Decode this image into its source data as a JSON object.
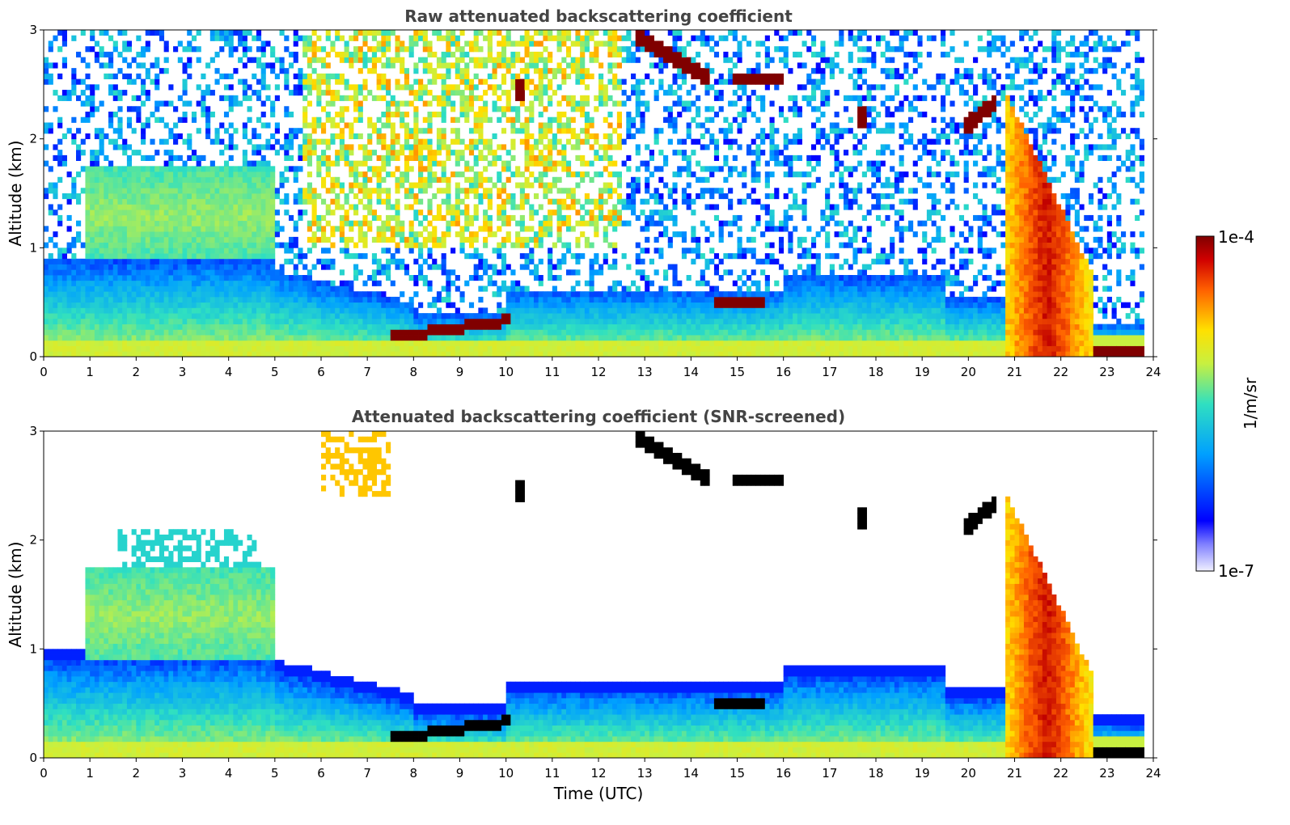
{
  "chart_data": [
    {
      "type": "heatmap",
      "title": "Raw attenuated backscattering coefficient",
      "xlabel": "",
      "ylabel": "Altitude (km)",
      "xlim": [
        0,
        24
      ],
      "ylim": [
        0,
        3
      ],
      "xticks": [
        0,
        1,
        2,
        3,
        4,
        5,
        6,
        7,
        8,
        9,
        10,
        11,
        12,
        13,
        14,
        15,
        16,
        17,
        18,
        19,
        20,
        21,
        22,
        23,
        24
      ],
      "yticks": [
        0,
        1,
        2,
        3
      ],
      "layers": [
        {
          "name": "surface layer",
          "x": [
            0,
            23.9
          ],
          "y": [
            0,
            0.15
          ],
          "level": 0.55
        },
        {
          "name": "boundary layer",
          "x": [
            0,
            21
          ],
          "y": [
            0.15,
            0.55
          ],
          "level": 0.45
        },
        {
          "name": "aerosol 0-5h",
          "x": [
            0.9,
            5
          ],
          "y": [
            0.9,
            1.7
          ],
          "level": 0.42
        },
        {
          "name": "descending cloud 8-10h",
          "x": [
            7.5,
            10.1
          ],
          "y_start": [
            0.2,
            0.35
          ],
          "level": 1.0
        },
        {
          "name": "cloud 12.8-14.5h",
          "x": [
            12.8,
            14.5
          ],
          "y_start": [
            3.0,
            2.6
          ],
          "level": 1.0
        },
        {
          "name": "cloud 15-16h",
          "x": [
            14.9,
            16
          ],
          "y_start": [
            2.55,
            2.55
          ],
          "level": 1.0
        },
        {
          "name": "cloud 14.5-15.5h",
          "x": [
            14.5,
            15.5
          ],
          "y_start": [
            0.48,
            0.52
          ],
          "level": 1.0
        },
        {
          "name": "precipitation 21-22.7h",
          "x": [
            20.8,
            22.7
          ],
          "y": [
            0,
            2.5
          ],
          "level": 0.8
        }
      ]
    },
    {
      "type": "heatmap",
      "title": "Attenuated backscattering coefficient (SNR-screened)",
      "xlabel": "Time (UTC)",
      "ylabel": "Altitude (km)",
      "xlim": [
        0,
        24
      ],
      "ylim": [
        0,
        3
      ],
      "xticks": [
        0,
        1,
        2,
        3,
        4,
        5,
        6,
        7,
        8,
        9,
        10,
        11,
        12,
        13,
        14,
        15,
        16,
        17,
        18,
        19,
        20,
        21,
        22,
        23,
        24
      ],
      "yticks": [
        0,
        1,
        2,
        3
      ],
      "screened": true
    }
  ],
  "colorbar": {
    "label": "1/m/sr",
    "max_label": "1e-4",
    "min_label": "1e-7",
    "range": [
      1e-07,
      0.0001
    ],
    "scale": "log"
  },
  "colors": {
    "cmap": [
      "#f0f0ff",
      "#0000ff",
      "#00a0ff",
      "#30e0c0",
      "#c8f040",
      "#ffe000",
      "#ff6000",
      "#c00000",
      "#800000"
    ],
    "screened_saturated": "#000000"
  }
}
